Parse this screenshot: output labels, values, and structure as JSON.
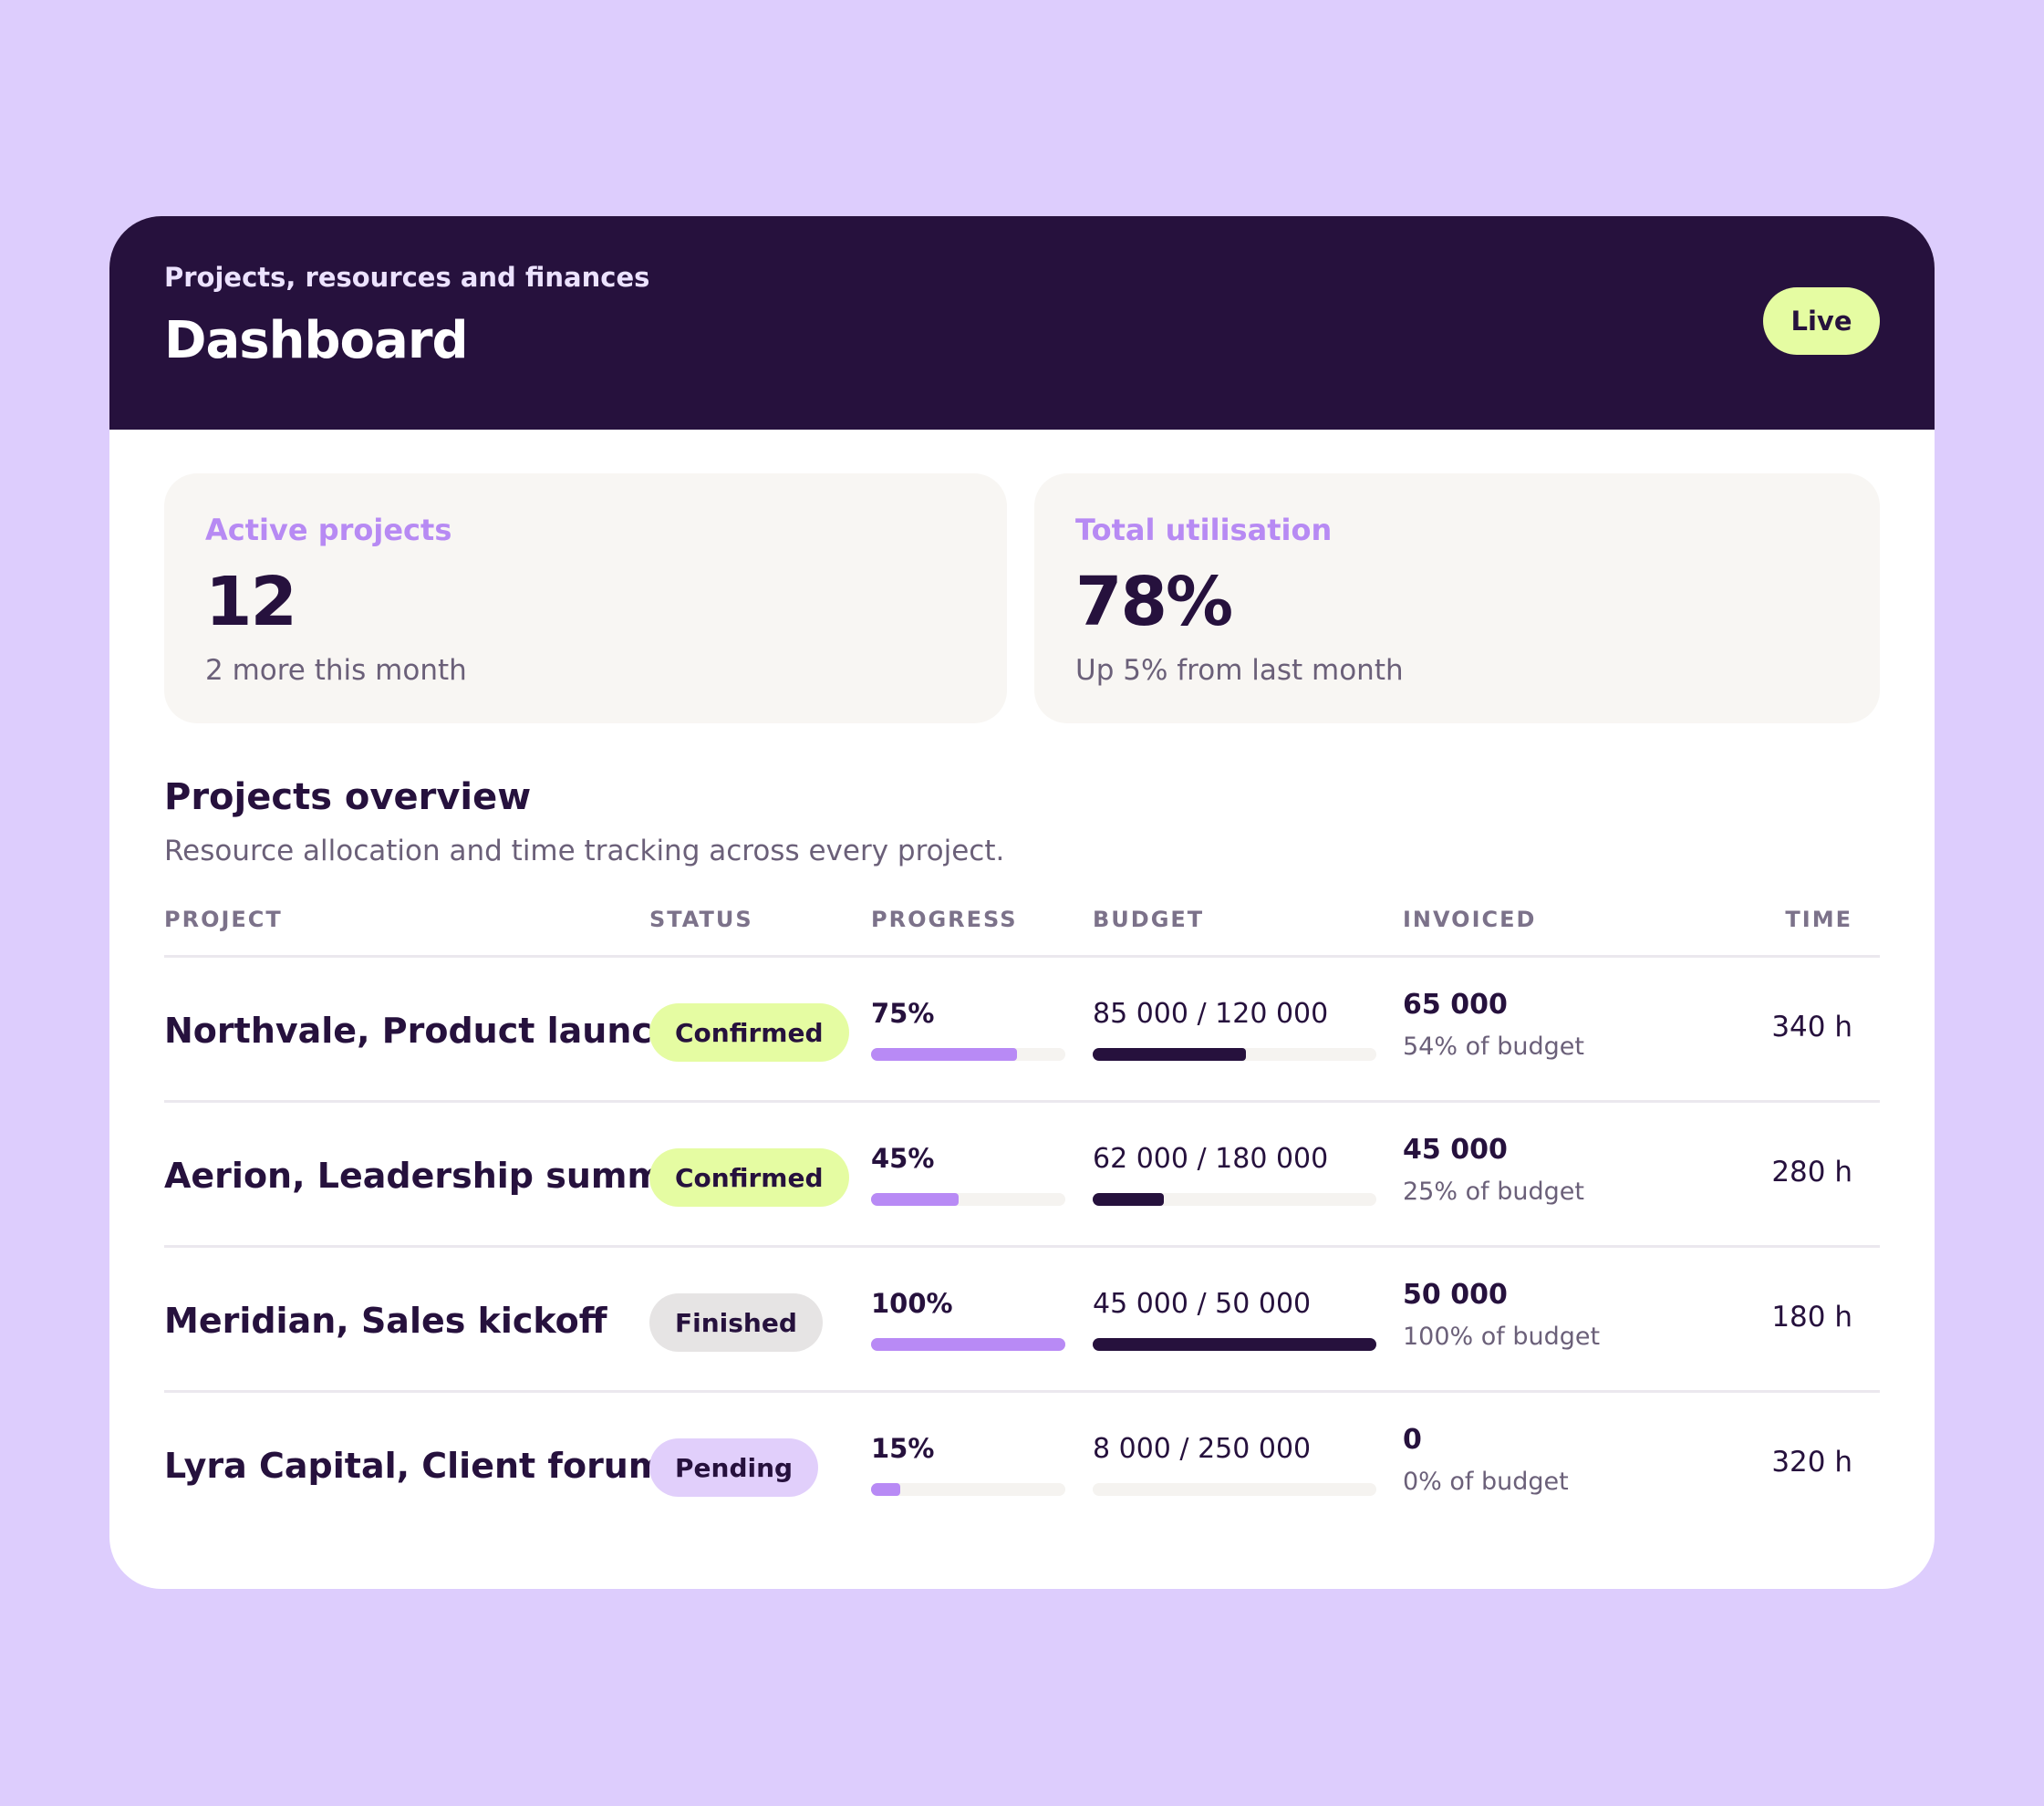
{
  "header": {
    "subtitle": "Projects, resources and finances",
    "title": "Dashboard",
    "status_badge": "Live"
  },
  "stats": [
    {
      "label": "Active projects",
      "value": "12",
      "delta": "2 more this month"
    },
    {
      "label": "Total utilisation",
      "value": "78%",
      "delta": "Up 5% from last month"
    }
  ],
  "overview": {
    "title": "Projects overview",
    "description": "Resource allocation and time tracking across every project.",
    "columns": [
      "PROJECT",
      "STATUS",
      "PROGRESS",
      "BUDGET",
      "INVOICED",
      "TIME"
    ],
    "rows": [
      {
        "project": "Northvale, Product launch",
        "status": "Confirmed",
        "progress_label": "75%",
        "progress": 0.75,
        "budget_label": "85 000 / 120 000",
        "budget_used": 0.54,
        "invoiced": "65 000",
        "invoiced_sub": "54% of budget",
        "time": "340 h"
      },
      {
        "project": "Aerion, Leadership summit",
        "status": "Confirmed",
        "progress_label": "45%",
        "progress": 0.45,
        "budget_label": "62 000 / 180 000",
        "budget_used": 0.25,
        "invoiced": "45 000",
        "invoiced_sub": "25% of budget",
        "time": "280 h"
      },
      {
        "project": "Meridian, Sales kickoff",
        "status": "Finished",
        "progress_label": "100%",
        "progress": 1.0,
        "budget_label": "45 000 / 50 000",
        "budget_used": 1.0,
        "invoiced": "50 000",
        "invoiced_sub": "100% of budget",
        "time": "180 h"
      },
      {
        "project": "Lyra Capital, Client forum",
        "status": "Pending",
        "progress_label": "15%",
        "progress": 0.15,
        "budget_label": "8 000 / 250 000",
        "budget_used": 0.0,
        "invoiced": "0",
        "invoiced_sub": "0% of budget",
        "time": "320 h"
      }
    ]
  },
  "colors": {
    "background": "#ddcdfd",
    "header": "#26113d",
    "accent_purple": "#b88af5",
    "confirmed": "#e5fca2",
    "finished": "#e6e4e4",
    "pending": "#e1cffb"
  }
}
